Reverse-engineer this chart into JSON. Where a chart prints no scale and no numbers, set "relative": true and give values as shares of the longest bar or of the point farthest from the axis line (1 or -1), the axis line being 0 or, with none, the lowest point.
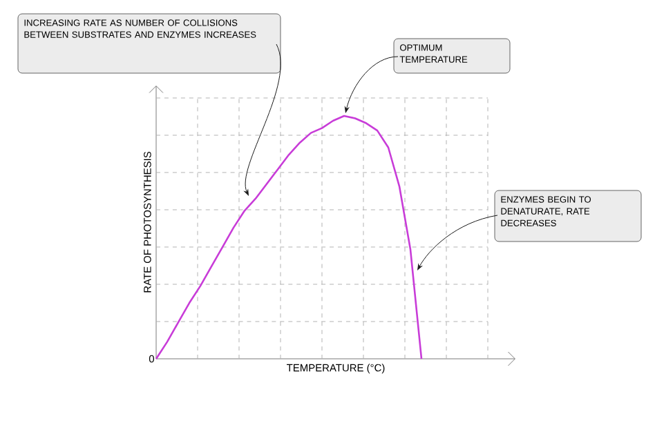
{
  "chart_data": {
    "type": "line",
    "relative": true,
    "grid": true,
    "xlabel": "TEMPERATURE (°C)",
    "ylabel": "RATE OF PHOTOSYNTHESIS",
    "categories": [
      null,
      null,
      null,
      null,
      null,
      null,
      null,
      null,
      null,
      null,
      null,
      null,
      null,
      null,
      null,
      null,
      null,
      null,
      null,
      null,
      null,
      null,
      null,
      null,
      null
    ],
    "series": [
      {
        "color": "#c83cd8",
        "values": [
          0,
          0.07,
          0.15,
          0.23,
          0.3,
          0.38,
          0.46,
          0.54,
          0.61,
          0.66,
          0.72,
          0.78,
          0.84,
          0.89,
          0.93,
          0.95,
          0.98,
          1,
          0.99,
          0.97,
          0.94,
          0.87,
          0.71,
          0.45,
          0
        ]
      }
    ],
    "annotations": [
      "INCREASING RATE AS NUMBER OF COLLISIONS BETWEEN SUBSTRATES AND ENZYMES INCREASES",
      "OPTIMUM TEMPERATURE",
      "ENZYMES BEGIN TO DENATURATE, RATE DECREASES",
      {
        "text": "0",
        "y": 0
      }
    ]
  }
}
